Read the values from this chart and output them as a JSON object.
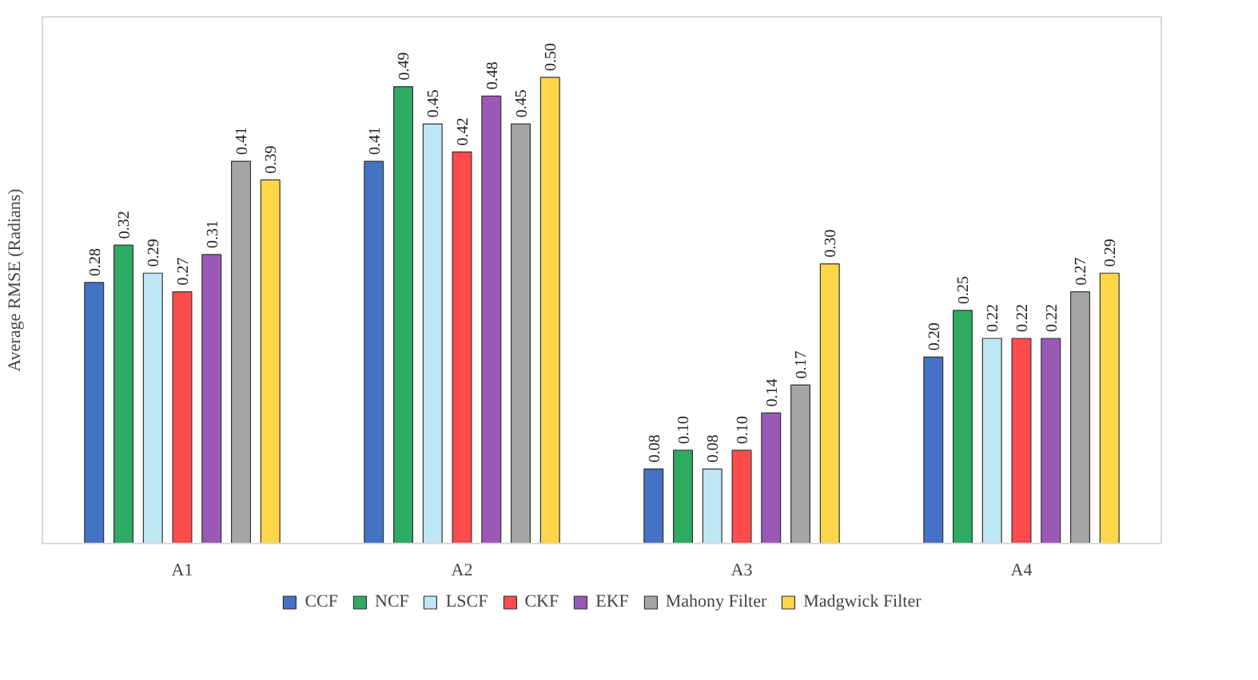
{
  "chart_data": {
    "type": "bar",
    "ylabel": "Average RMSE (Radians)",
    "categories": [
      "A1",
      "A2",
      "A3",
      "A4"
    ],
    "series": [
      {
        "name": "CCF",
        "color": "#4472c4",
        "values": [
          0.28,
          0.41,
          0.08,
          0.2
        ],
        "value_labels": [
          "0.28",
          "0.41",
          "0.08",
          "0.20"
        ]
      },
      {
        "name": "NCF",
        "color": "#2eaa62",
        "values": [
          0.32,
          0.49,
          0.1,
          0.25
        ],
        "value_labels": [
          "0.32",
          "0.49",
          "0.10",
          "0.25"
        ]
      },
      {
        "name": "LSCF",
        "color": "#bfe6f5",
        "values": [
          0.29,
          0.45,
          0.08,
          0.22
        ],
        "value_labels": [
          "0.29",
          "0.45",
          "0.08",
          "0.22"
        ]
      },
      {
        "name": "CKF",
        "color": "#ff4b4b",
        "values": [
          0.27,
          0.42,
          0.1,
          0.22
        ],
        "value_labels": [
          "0.27",
          "0.42",
          "0.10",
          "0.22"
        ]
      },
      {
        "name": "EKF",
        "color": "#9b59b6",
        "values": [
          0.31,
          0.48,
          0.14,
          0.22
        ],
        "value_labels": [
          "0.31",
          "0.48",
          "0.14",
          "0.22"
        ]
      },
      {
        "name": "Mahony Filter",
        "color": "#a6a6a6",
        "values": [
          0.41,
          0.45,
          0.17,
          0.27
        ],
        "value_labels": [
          "0.41",
          "0.45",
          "0.17",
          "0.27"
        ]
      },
      {
        "name": "Madgwick Filter",
        "color": "#ffd54a",
        "values": [
          0.39,
          0.5,
          0.3,
          0.29
        ],
        "value_labels": [
          "0.39",
          "0.50",
          "0.30",
          "0.29"
        ]
      }
    ],
    "legend": "bottom",
    "grid": false
  }
}
